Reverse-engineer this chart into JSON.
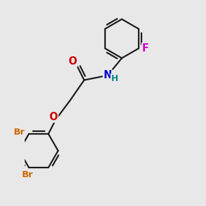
{
  "bg_color": "#e8e8e8",
  "bond_color": "#1a1a1a",
  "bond_width": 1.6,
  "atom_colors": {
    "O": "#cc0000",
    "N": "#0000cc",
    "F": "#cc00cc",
    "Br": "#cc6600",
    "H": "#008888",
    "C": "#1a1a1a"
  },
  "font_size": 9.5,
  "fig_width": 3.0,
  "fig_height": 3.0,
  "dpi": 100
}
